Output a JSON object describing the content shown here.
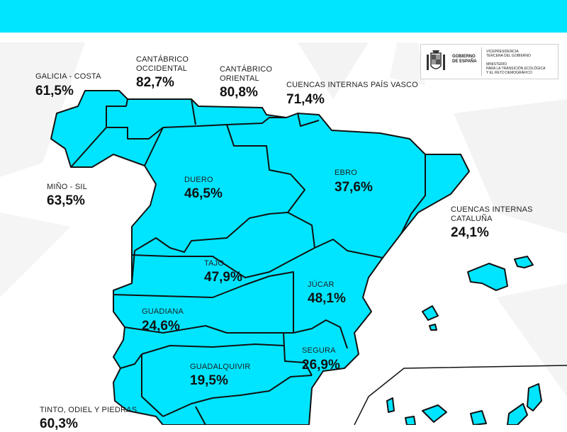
{
  "header": {
    "bar_color": "#00e5ff"
  },
  "logo": {
    "icon": "spain-coat-of-arms-icon",
    "gobierno_lines": [
      "GOBIERNO",
      "DE ESPAÑA"
    ],
    "vice_lines": [
      "VICEPRESIDENCIA",
      "TERCERA DEL GOBIERNO",
      "",
      "MINISTERIO",
      "PARA LA TRANSICIÓN ECOLÓGICA",
      "Y EL RETO DEMOGRÁFICO"
    ]
  },
  "colors": {
    "basin_fill": "#00e5ff",
    "border": "#111111",
    "background": "#ffffff",
    "bg_shapes": "#f2f2f2"
  },
  "regions": [
    {
      "id": "galicia-costa",
      "label_lines": [
        "GALICIA - COSTA"
      ],
      "value": "61,5%"
    },
    {
      "id": "cantabrico-occidental",
      "label_lines": [
        "CANTÁBRICO",
        "OCCIDENTAL"
      ],
      "value": "82,7%"
    },
    {
      "id": "cantabrico-oriental",
      "label_lines": [
        "CANTÁBRICO",
        "ORIENTAL"
      ],
      "value": "80,8%"
    },
    {
      "id": "cuencas-internas-pais-vasco",
      "label_lines": [
        "CUENCAS INTERNAS PAÍS VASCO"
      ],
      "value": "71,4%"
    },
    {
      "id": "mino-sil",
      "label_lines": [
        "MIÑO - SIL"
      ],
      "value": "63,5%"
    },
    {
      "id": "duero",
      "label_lines": [
        "DUERO"
      ],
      "value": "46,5%"
    },
    {
      "id": "ebro",
      "label_lines": [
        "EBRO"
      ],
      "value": "37,6%"
    },
    {
      "id": "cuencas-internas-cataluna",
      "label_lines": [
        "CUENCAS INTERNAS",
        "CATALUÑA"
      ],
      "value": "24,1%"
    },
    {
      "id": "tajo",
      "label_lines": [
        "TAJO"
      ],
      "value": "47,9%"
    },
    {
      "id": "jucar",
      "label_lines": [
        "JÚCAR"
      ],
      "value": "48,1%"
    },
    {
      "id": "guadiana",
      "label_lines": [
        "GUADIANA"
      ],
      "value": "24,6%"
    },
    {
      "id": "segura",
      "label_lines": [
        "SEGURA"
      ],
      "value": "26,9%"
    },
    {
      "id": "guadalquivir",
      "label_lines": [
        "GUADALQUIVIR"
      ],
      "value": "19,5%"
    },
    {
      "id": "tinto-odiel-piedras",
      "label_lines": [
        "TINTO, ODIEL Y PIEDRAS"
      ],
      "value": "60,3%"
    }
  ]
}
